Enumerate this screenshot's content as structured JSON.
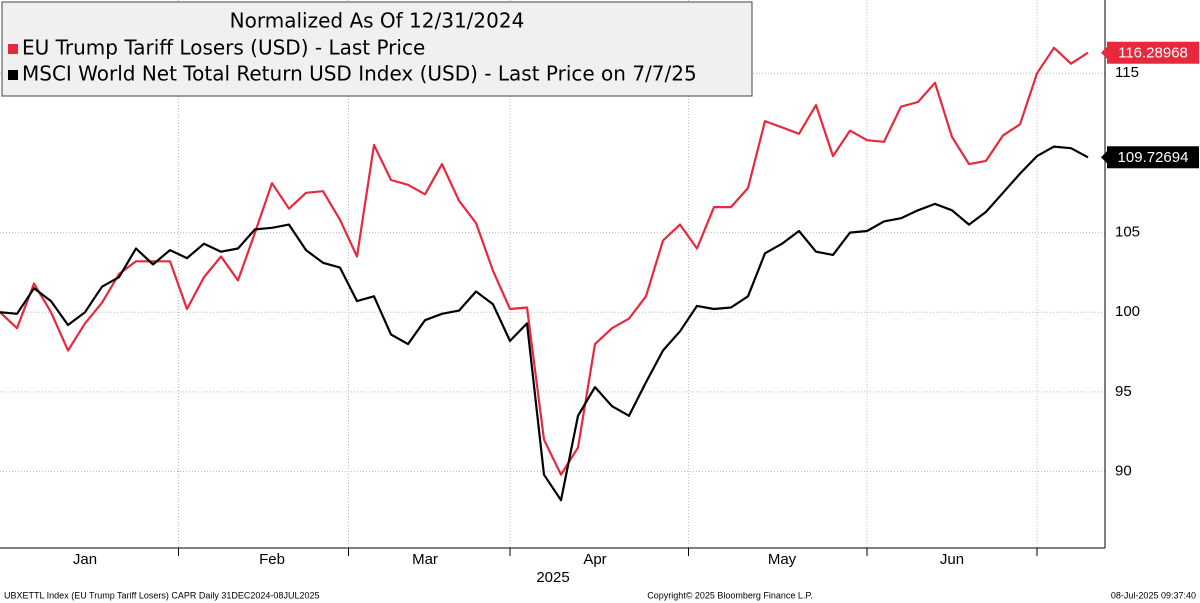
{
  "chart_data": {
    "type": "line",
    "title": "Normalized As Of 12/31/2024",
    "x_label": "2025",
    "footer_left": "UBXETTL Index (EU Trump Tariff Losers) CAPR  Daily 31DEC2024-08JUL2025",
    "footer_center": "Copyright© 2025 Bloomberg Finance L.P.",
    "footer_right": "08-Jul-2025 09:37:40",
    "categories": [
      null,
      null,
      null,
      null,
      null,
      "Jan",
      null,
      null,
      null,
      null,
      null,
      null,
      null,
      null,
      null,
      null,
      "Feb",
      null,
      null,
      null,
      null,
      null,
      null,
      null,
      null,
      "Mar",
      null,
      null,
      null,
      null,
      null,
      null,
      null,
      null,
      null,
      "Apr",
      null,
      null,
      null,
      null,
      null,
      null,
      null,
      null,
      null,
      null,
      "May",
      null,
      null,
      null,
      null,
      null,
      null,
      null,
      null,
      null,
      "Jun",
      null,
      null,
      null,
      null,
      null,
      null,
      null,
      null
    ],
    "series": [
      {
        "name": "EU Trump Tariff Losers (USD) - Last Price",
        "color": "#e8283c",
        "values": [
          100,
          99.0,
          101.8,
          100.0,
          97.6,
          99.3,
          100.6,
          102.4,
          103.2,
          103.2,
          103.2,
          100.2,
          102.2,
          103.5,
          102.0,
          105.0,
          108.1,
          106.5,
          107.5,
          107.6,
          105.8,
          103.5,
          110.5,
          108.3,
          108.0,
          107.4,
          109.3,
          107.0,
          105.6,
          102.6,
          100.2,
          100.3,
          92.0,
          89.8,
          91.5,
          98.0,
          99.0,
          99.6,
          101.0,
          104.5,
          105.5,
          104.0,
          106.6,
          106.6,
          107.8,
          112.0,
          111.6,
          111.2,
          113.0,
          109.8,
          111.4,
          110.8,
          110.7,
          112.9,
          113.2,
          114.4,
          111.0,
          109.3,
          109.5,
          111.1,
          111.8,
          115.0,
          116.6,
          115.6,
          116.28968
        ]
      },
      {
        "name": "MSCI World Net Total Return USD Index (USD) - Last Price on 7/7/25",
        "color": "#000000",
        "values": [
          100,
          99.9,
          101.5,
          100.7,
          99.2,
          100.0,
          101.6,
          102.2,
          104.0,
          103.0,
          103.9,
          103.4,
          104.3,
          103.8,
          104.0,
          105.2,
          105.3,
          105.5,
          103.9,
          103.1,
          102.8,
          100.7,
          101.0,
          98.6,
          98.0,
          99.5,
          99.9,
          100.1,
          101.3,
          100.5,
          98.2,
          99.3,
          89.8,
          88.2,
          93.5,
          95.3,
          94.1,
          93.5,
          95.6,
          97.6,
          98.8,
          100.4,
          100.2,
          100.3,
          101.0,
          103.7,
          104.3,
          105.1,
          103.8,
          103.6,
          105.0,
          105.1,
          105.7,
          105.9,
          106.4,
          106.8,
          106.4,
          105.5,
          106.3,
          107.5,
          108.7,
          109.8,
          110.4,
          110.3,
          109.72694
        ]
      }
    ],
    "ylim": [
      85.2,
      119.6
    ],
    "yticks": [
      90,
      95,
      100,
      105,
      115
    ],
    "grid": true
  }
}
